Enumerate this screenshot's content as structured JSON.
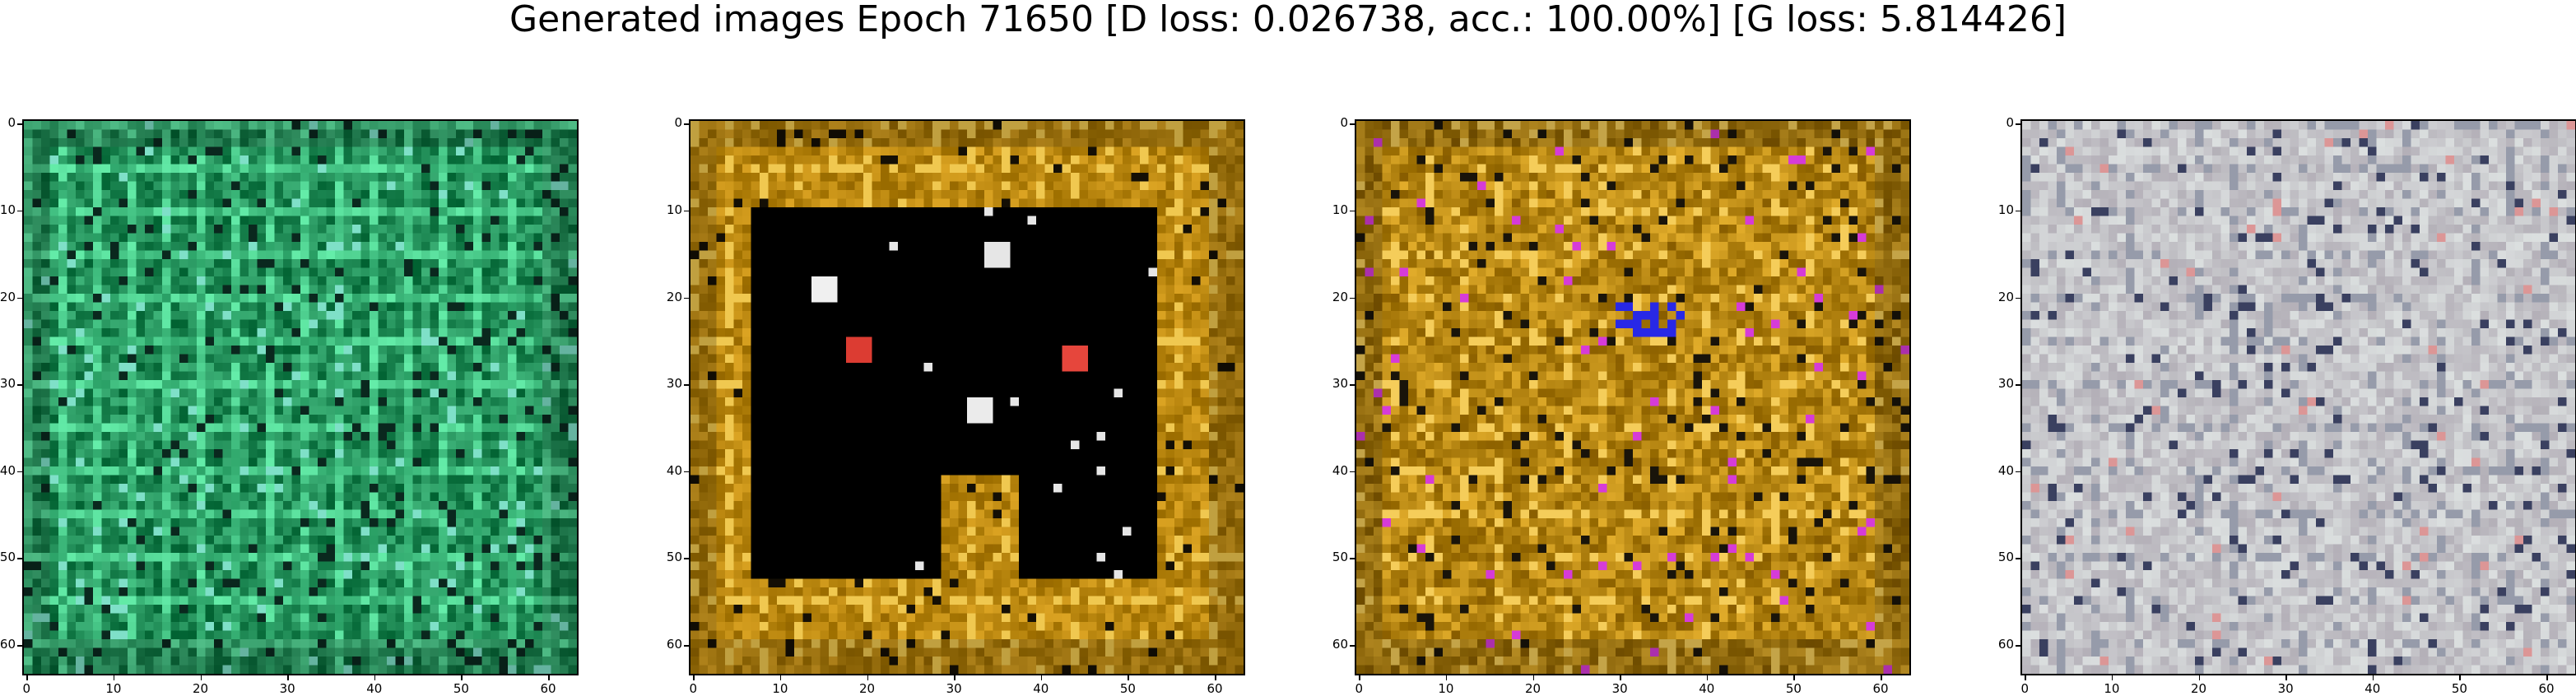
{
  "figure": {
    "title": "Generated images Epoch 71650 [D loss: 0.026738, acc.: 100.00%] [G loss: 5.814426]"
  },
  "axes": {
    "y_ticks": [
      "0",
      "10",
      "20",
      "30",
      "40",
      "50",
      "60"
    ],
    "x_ticks": [
      "0",
      "10",
      "20",
      "30",
      "40",
      "50",
      "60"
    ],
    "pixel_range": [
      0,
      63
    ]
  },
  "images": [
    {
      "name": "sample-1",
      "palette": "green-teal noisy pattern",
      "base_color": "#1f8a55",
      "accent_color": "#7fe0c8"
    },
    {
      "name": "sample-2",
      "palette": "gold frame with black interior and colored spots",
      "base_color": "#b9860f",
      "accent_color": "#000000"
    },
    {
      "name": "sample-3",
      "palette": "gold noisy pattern with magenta and blue spots",
      "base_color": "#b58512",
      "accent_color": "#d63bd8"
    },
    {
      "name": "sample-4",
      "palette": "light gray noisy pattern",
      "base_color": "#c9cacc",
      "accent_color": "#3a4060"
    }
  ]
}
